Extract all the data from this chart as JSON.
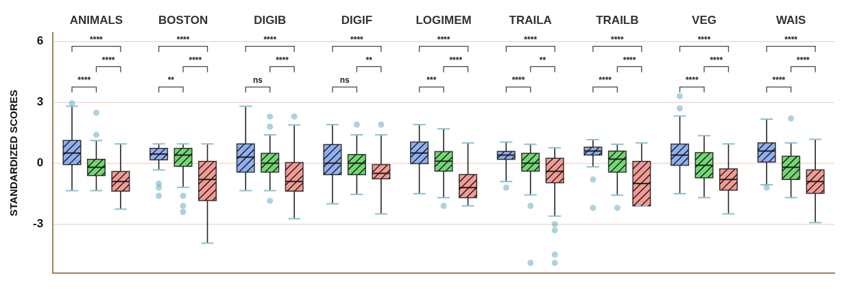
{
  "chart_data": {
    "type": "box",
    "ylabel": "STANDARDIZED SCORES",
    "categories": [
      "ANIMALS",
      "BOSTON",
      "DIGIB",
      "DIGIF",
      "LOGIMEM",
      "TRAILA",
      "TRAILB",
      "VEG",
      "WAIS"
    ],
    "ylim": [
      -5.4,
      6.4
    ],
    "yticks": [
      6,
      3,
      0,
      -3
    ],
    "grid": "y",
    "annotations": [
      "****",
      "****",
      "****",
      "****",
      "****",
      "**",
      "****",
      "****",
      "ns",
      "****",
      "**",
      "ns",
      "****",
      "****",
      "***",
      "****",
      "**",
      "****",
      "****",
      "****",
      "****",
      "****",
      "****",
      "****",
      "****",
      "****",
      "****"
    ],
    "series": [
      {
        "color": "#8fb0f0",
        "boxes": [
          {
            "low": -1.35,
            "q1": -0.07,
            "median": 0.5,
            "q3": 1.12,
            "high": 2.8,
            "outliers": [
              2.95
            ]
          },
          {
            "low": -0.33,
            "q1": 0.17,
            "median": 0.45,
            "q3": 0.73,
            "high": 0.95,
            "outliers": [
              -1.0,
              -1.2,
              -1.6
            ]
          },
          {
            "low": -1.35,
            "q1": -0.44,
            "median": 0.3,
            "q3": 0.95,
            "high": 2.8
          },
          {
            "low": -2.0,
            "q1": -0.57,
            "median": 0.0,
            "q3": 0.92,
            "high": 1.9
          },
          {
            "low": -1.5,
            "q1": -0.02,
            "median": 0.5,
            "q3": 1.04,
            "high": 1.9
          },
          {
            "low": -0.9,
            "q1": 0.19,
            "median": 0.4,
            "q3": 0.58,
            "high": 1.04,
            "outliers": [
              -1.2
            ]
          },
          {
            "low": -0.18,
            "q1": 0.4,
            "median": 0.6,
            "q3": 0.79,
            "high": 1.16,
            "outliers": [
              -0.8,
              -2.2
            ]
          },
          {
            "low": -1.5,
            "q1": -0.1,
            "median": 0.4,
            "q3": 0.94,
            "high": 2.32,
            "outliers": [
              2.7,
              3.3
            ]
          },
          {
            "low": -1.06,
            "q1": 0.06,
            "median": 0.6,
            "q3": 1.0,
            "high": 2.17,
            "outliers": [
              -1.2
            ]
          }
        ]
      },
      {
        "color": "#72d872",
        "boxes": [
          {
            "low": -1.35,
            "q1": -0.61,
            "median": -0.2,
            "q3": 0.19,
            "high": 1.12,
            "outliers": [
              1.4,
              2.48
            ]
          },
          {
            "low": -1.19,
            "q1": -0.15,
            "median": 0.4,
            "q3": 0.73,
            "high": 0.95,
            "outliers": [
              -1.6,
              -2.1,
              -2.4
            ]
          },
          {
            "low": -1.35,
            "q1": -0.44,
            "median": 0.0,
            "q3": 0.49,
            "high": 1.4,
            "outliers": [
              1.8,
              2.3,
              -1.85
            ]
          },
          {
            "low": -1.53,
            "q1": -0.57,
            "median": 0.0,
            "q3": 0.43,
            "high": 1.4,
            "outliers": [
              1.9
            ]
          },
          {
            "low": -1.69,
            "q1": -0.39,
            "median": 0.1,
            "q3": 0.57,
            "high": 1.69,
            "outliers": [
              -2.1
            ]
          },
          {
            "low": -1.56,
            "q1": -0.39,
            "median": 0.0,
            "q3": 0.49,
            "high": 0.93,
            "outliers": [
              -2.1,
              -4.9
            ]
          },
          {
            "low": -1.58,
            "q1": -0.44,
            "median": 0.2,
            "q3": 0.6,
            "high": 0.93,
            "outliers": [
              -2.2
            ]
          },
          {
            "low": -1.69,
            "q1": -0.72,
            "median": -0.1,
            "q3": 0.52,
            "high": 1.35
          },
          {
            "low": -1.69,
            "q1": -0.8,
            "median": -0.2,
            "q3": 0.34,
            "high": 1.0,
            "outliers": [
              2.2
            ]
          }
        ]
      },
      {
        "color": "#f29a94",
        "boxes": [
          {
            "low": -2.26,
            "q1": -1.37,
            "median": -0.9,
            "q3": -0.41,
            "high": 0.95
          },
          {
            "low": -3.93,
            "q1": -1.84,
            "median": -0.8,
            "q3": 0.09,
            "high": 0.95
          },
          {
            "low": -2.73,
            "q1": -1.37,
            "median": -0.9,
            "q3": 0.03,
            "high": 1.88,
            "outliers": [
              2.3
            ]
          },
          {
            "low": -2.49,
            "q1": -0.77,
            "median": -0.5,
            "q3": -0.07,
            "high": 1.4,
            "outliers": [
              1.9
            ]
          },
          {
            "low": -2.1,
            "q1": -1.69,
            "median": -1.2,
            "q3": -0.56,
            "high": 1.0
          },
          {
            "low": -2.6,
            "q1": -0.96,
            "median": -0.4,
            "q3": 0.24,
            "high": 0.76,
            "outliers": [
              -3.0,
              -3.3,
              -4.5,
              -4.9
            ]
          },
          {
            "low": -2.1,
            "q1": -2.1,
            "median": -1.0,
            "q3": 0.09,
            "high": 1.0
          },
          {
            "low": -2.49,
            "q1": -1.32,
            "median": -0.8,
            "q3": -0.28,
            "high": 0.95
          },
          {
            "low": -2.92,
            "q1": -1.48,
            "median": -0.9,
            "q3": -0.33,
            "high": 1.18
          }
        ]
      }
    ]
  }
}
